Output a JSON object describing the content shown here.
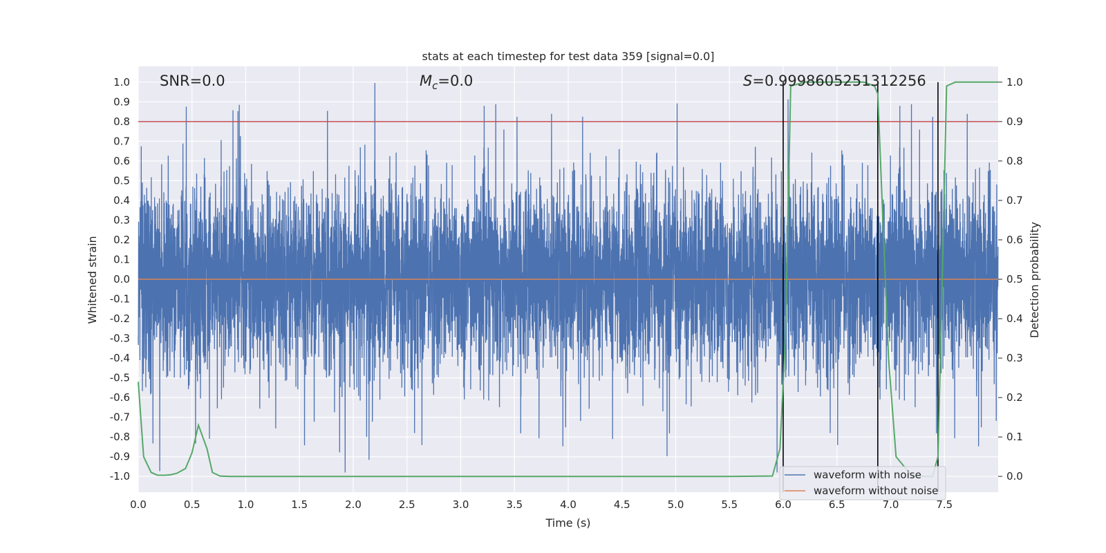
{
  "chart_data": {
    "type": "line",
    "title": "stats at each timestep for test data 359 [signal=0.0]",
    "xlabel": "Time (s)",
    "ylabel": "Whitened strain",
    "ylabel_right": "Detection probability",
    "xlim": [
      0.0,
      8.0
    ],
    "ylim": [
      -1.08,
      1.08
    ],
    "ylim_right": [
      -0.04,
      1.04
    ],
    "x_ticks": [
      "0.0",
      "0.5",
      "1.0",
      "1.5",
      "2.0",
      "2.5",
      "3.0",
      "3.5",
      "4.0",
      "4.5",
      "5.0",
      "5.5",
      "6.0",
      "6.5",
      "7.0",
      "7.5"
    ],
    "y_ticks": [
      "1.0",
      "0.9",
      "0.8",
      "0.7",
      "0.6",
      "0.5",
      "0.4",
      "0.3",
      "0.2",
      "0.1",
      "0.0",
      "-0.1",
      "-0.2",
      "-0.3",
      "-0.4",
      "-0.5",
      "-0.6",
      "-0.7",
      "-0.8",
      "-0.9",
      "-1.0"
    ],
    "y_ticks_right": [
      "1.0",
      "0.9",
      "0.8",
      "0.7",
      "0.6",
      "0.5",
      "0.4",
      "0.3",
      "0.2",
      "0.1",
      "0.0"
    ],
    "annotations": {
      "snr": "SNR=0.0",
      "mc_symbol": "M",
      "mc_sub": "c",
      "mc_value": "=0.0",
      "s_symbol": "S",
      "s_value": "=0.9998605251312256"
    },
    "threshold_line": {
      "y": 0.8,
      "color": "#c44e52"
    },
    "detection_times": [
      6.0,
      6.88,
      7.44
    ],
    "series": [
      {
        "name": "waveform with noise",
        "color": "#4c72b0",
        "noise_seed": 359,
        "approx_amplitude_range": [
          -0.98,
          1.0
        ]
      },
      {
        "name": "waveform without noise",
        "color": "#dd8452",
        "constant_value": 0.0
      },
      {
        "name": "detection probability",
        "axis": "right",
        "color": "#55a868",
        "x": [
          0.0,
          0.05,
          0.12,
          0.18,
          0.25,
          0.3,
          0.36,
          0.44,
          0.5,
          0.56,
          0.64,
          0.69,
          0.76,
          0.85,
          1.0,
          2.0,
          3.0,
          4.0,
          5.0,
          5.5,
          5.9,
          5.97,
          6.02,
          6.07,
          6.2,
          6.5,
          6.75,
          6.85,
          6.88,
          6.92,
          6.98,
          7.05,
          7.2,
          7.39,
          7.44,
          7.48,
          7.52,
          7.6,
          8.0
        ],
        "y": [
          0.24,
          0.05,
          0.01,
          0.003,
          0.003,
          0.004,
          0.008,
          0.02,
          0.06,
          0.13,
          0.07,
          0.01,
          0.001,
          0.0,
          0.0,
          0.0,
          0.0,
          0.0,
          0.0,
          0.0,
          0.001,
          0.07,
          0.35,
          0.99,
          1.0,
          1.0,
          1.0,
          0.99,
          0.97,
          0.7,
          0.3,
          0.05,
          0.0,
          0.0,
          0.05,
          0.5,
          0.99,
          1.0,
          1.0
        ]
      }
    ],
    "legend": {
      "location": "lower-right",
      "entries": [
        "waveform with noise",
        "waveform without noise"
      ]
    }
  }
}
